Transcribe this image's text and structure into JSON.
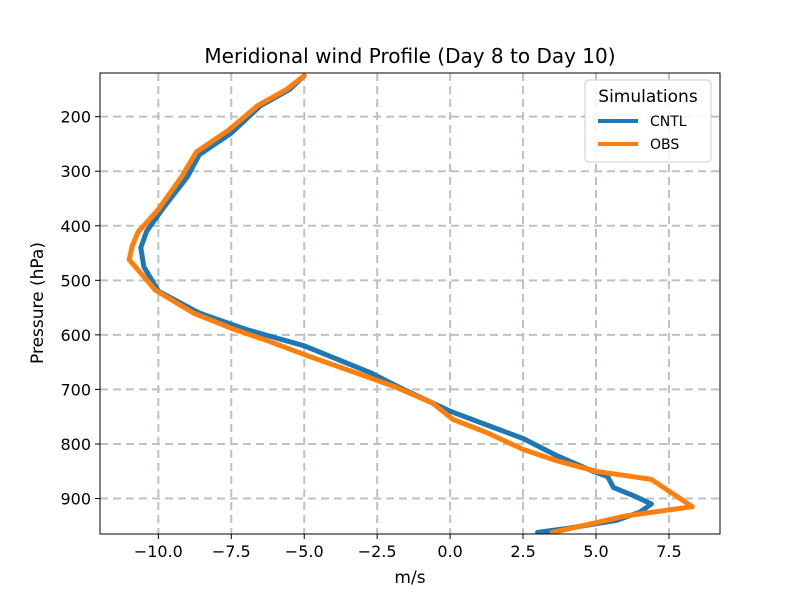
{
  "chart_data": {
    "type": "line",
    "title": "Meridional wind Profile (Day 8 to Day 10)",
    "xlabel": "m/s",
    "ylabel": "Pressure (hPa)",
    "xlim": [
      -12.0,
      9.25
    ],
    "ylim": [
      965,
      120
    ],
    "y_inverted": true,
    "grid": true,
    "legend": {
      "title": "Simulations",
      "placement": "top-right"
    },
    "x_ticks": [
      -10.0,
      -7.5,
      -5.0,
      -2.5,
      0.0,
      2.5,
      5.0,
      7.5
    ],
    "x_tick_labels": [
      "−10.0",
      "−7.5",
      "−5.0",
      "−2.5",
      "0.0",
      "2.5",
      "5.0",
      "7.5"
    ],
    "y_ticks": [
      200,
      300,
      400,
      500,
      600,
      700,
      800,
      900
    ],
    "y_tick_labels": [
      "200",
      "300",
      "400",
      "500",
      "600",
      "700",
      "800",
      "900"
    ],
    "series": [
      {
        "name": "CNTL",
        "color": "#1f77b4",
        "x": [
          -5.0,
          -5.5,
          -6.5,
          -7.5,
          -8.6,
          -9.0,
          -9.8,
          -10.4,
          -10.6,
          -10.5,
          -10.0,
          -8.6,
          -7.0,
          -5.0,
          -2.7,
          -1.6,
          0.0,
          1.5,
          2.5,
          3.6,
          4.9,
          5.4,
          5.6,
          6.3,
          6.9,
          6.5,
          5.7,
          4.0,
          3.0
        ],
        "y": [
          125,
          150,
          180,
          230,
          270,
          310,
          365,
          410,
          440,
          475,
          520,
          560,
          590,
          620,
          670,
          700,
          740,
          770,
          790,
          820,
          850,
          860,
          880,
          895,
          910,
          925,
          940,
          955,
          962
        ]
      },
      {
        "name": "OBS",
        "color": "#ff7f0e",
        "x": [
          -5.0,
          -5.6,
          -6.6,
          -7.6,
          -8.7,
          -9.2,
          -10.0,
          -10.7,
          -10.9,
          -11.0,
          -10.1,
          -8.8,
          -7.4,
          -6.3,
          -4.8,
          -3.2,
          -1.9,
          -0.6,
          0.1,
          1.3,
          2.5,
          3.6,
          5.0,
          6.9,
          8.3,
          6.0,
          4.7,
          3.5
        ],
        "y": [
          125,
          150,
          180,
          225,
          265,
          310,
          370,
          412,
          438,
          462,
          518,
          560,
          590,
          610,
          640,
          670,
          695,
          725,
          755,
          780,
          810,
          830,
          850,
          865,
          915,
          932,
          948,
          962
        ]
      }
    ]
  }
}
